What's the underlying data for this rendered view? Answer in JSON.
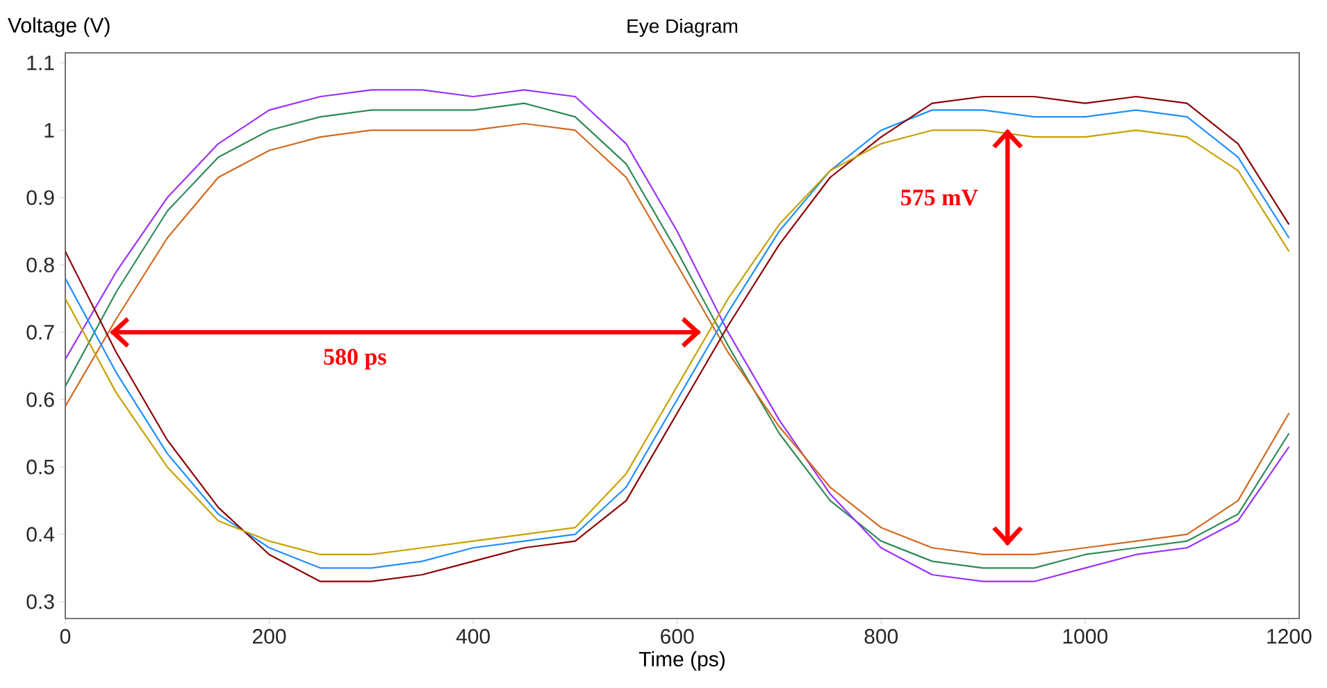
{
  "chart_data": {
    "type": "line",
    "title": "Eye Diagram",
    "xlabel": "Time (ps)",
    "ylabel": "Voltage (V)",
    "x": [
      0,
      50,
      100,
      150,
      200,
      250,
      300,
      350,
      400,
      450,
      500,
      550,
      600,
      650,
      700,
      750,
      800,
      850,
      900,
      950,
      1000,
      1050,
      1100,
      1150,
      1200
    ],
    "xlim": [
      0,
      1210
    ],
    "ylim": [
      0.275,
      1.115
    ],
    "xticks": [
      0,
      200,
      400,
      600,
      800,
      1000,
      1200
    ],
    "yticks": [
      0.3,
      0.4,
      0.5,
      0.6,
      0.7,
      0.8,
      0.9,
      1,
      1.1
    ],
    "series": [
      {
        "color": "#2e8b57",
        "values": [
          0.62,
          0.76,
          0.88,
          0.96,
          1.0,
          1.02,
          1.03,
          1.03,
          1.03,
          1.04,
          1.02,
          0.95,
          0.82,
          0.68,
          0.55,
          0.45,
          0.39,
          0.36,
          0.35,
          0.35,
          0.37,
          0.38,
          0.39,
          0.43,
          0.55
        ]
      },
      {
        "color": "#9b30ff",
        "values": [
          0.66,
          0.79,
          0.9,
          0.98,
          1.03,
          1.05,
          1.06,
          1.06,
          1.05,
          1.06,
          1.05,
          0.98,
          0.85,
          0.7,
          0.57,
          0.46,
          0.38,
          0.34,
          0.33,
          0.33,
          0.35,
          0.37,
          0.38,
          0.42,
          0.53
        ]
      },
      {
        "color": "#d2691e",
        "values": [
          0.59,
          0.72,
          0.84,
          0.93,
          0.97,
          0.99,
          1.0,
          1.0,
          1.0,
          1.01,
          1.0,
          0.93,
          0.8,
          0.67,
          0.56,
          0.47,
          0.41,
          0.38,
          0.37,
          0.37,
          0.38,
          0.39,
          0.4,
          0.45,
          0.58
        ]
      },
      {
        "color": "#1e90ff",
        "values": [
          0.78,
          0.64,
          0.52,
          0.43,
          0.38,
          0.35,
          0.35,
          0.36,
          0.38,
          0.39,
          0.4,
          0.47,
          0.6,
          0.73,
          0.85,
          0.94,
          1.0,
          1.03,
          1.03,
          1.02,
          1.02,
          1.03,
          1.02,
          0.96,
          0.84
        ]
      },
      {
        "color": "#8b0000",
        "values": [
          0.82,
          0.67,
          0.54,
          0.44,
          0.37,
          0.33,
          0.33,
          0.34,
          0.36,
          0.38,
          0.39,
          0.45,
          0.58,
          0.71,
          0.83,
          0.93,
          0.99,
          1.04,
          1.05,
          1.05,
          1.04,
          1.05,
          1.04,
          0.98,
          0.86
        ]
      },
      {
        "color": "#c8a000",
        "values": [
          0.75,
          0.61,
          0.5,
          0.42,
          0.39,
          0.37,
          0.37,
          0.38,
          0.39,
          0.4,
          0.41,
          0.49,
          0.62,
          0.75,
          0.86,
          0.94,
          0.98,
          1.0,
          1.0,
          0.99,
          0.99,
          1.0,
          0.99,
          0.94,
          0.82
        ]
      }
    ],
    "annotations": [
      "580 ps",
      "575 mV"
    ]
  }
}
